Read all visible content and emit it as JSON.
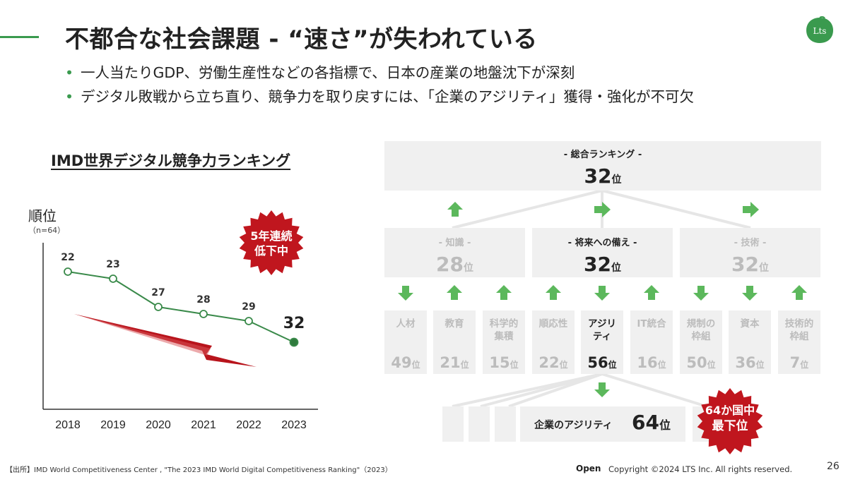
{
  "slide": {
    "title": "不都合な社会課題 - “速さ”が失われている",
    "logo_text": "Lts",
    "bullets": [
      "一人当たりGDP、労働生産性などの各指標で、日本の産業の地盤沈下が深刻",
      "デジタル敗戦から立ち直り、競争力を取り戻すには、「企業のアジリティ」獲得・強化が不可欠"
    ],
    "accent_color": "#3a9a4e",
    "alert_color": "#c0161e"
  },
  "left": {
    "title": "IMD世界デジタル競争力ランキング",
    "ylabel": "順位",
    "ysub": "（n=64）",
    "badge": [
      "5年連続",
      "低下中"
    ]
  },
  "chart_data": {
    "type": "line",
    "x": [
      "2018",
      "2019",
      "2020",
      "2021",
      "2022",
      "2023"
    ],
    "series": [
      {
        "values": [
          22,
          23,
          27,
          28,
          29,
          32
        ]
      }
    ],
    "point_labels": [
      "22",
      "23",
      "27",
      "28",
      "29",
      "32"
    ],
    "yaxis_inverted": true,
    "line_color": "#3a8a4a",
    "trend_arrow_color": "#b8141c"
  },
  "right": {
    "top": {
      "caption": "- 総合ランキング -",
      "rank": "32",
      "suffix": "位"
    },
    "mid": [
      {
        "caption": "- 知識 -",
        "rank": "28",
        "suffix": "位",
        "active": false
      },
      {
        "caption": "- 将来への備え -",
        "rank": "32",
        "suffix": "位",
        "active": true
      },
      {
        "caption": "- 技術 -",
        "rank": "32",
        "suffix": "位",
        "active": false
      }
    ],
    "mid_arrows": [
      "up",
      "right",
      "right"
    ],
    "leaves": [
      {
        "line1": "人材",
        "line2": "",
        "rank": "49",
        "suffix": "位",
        "arrow": "down",
        "active": false
      },
      {
        "line1": "教育",
        "line2": "",
        "rank": "21",
        "suffix": "位",
        "arrow": "up",
        "active": false
      },
      {
        "line1": "科学的",
        "line2": "集積",
        "rank": "15",
        "suffix": "位",
        "arrow": "up",
        "active": false
      },
      {
        "line1": "順応性",
        "line2": "",
        "rank": "22",
        "suffix": "位",
        "arrow": "up",
        "active": false
      },
      {
        "line1": "アジリ",
        "line2": "ティ",
        "rank": "56",
        "suffix": "位",
        "arrow": "down",
        "active": true
      },
      {
        "line1": "IT統合",
        "line2": "",
        "rank": "16",
        "suffix": "位",
        "arrow": "up",
        "active": false
      },
      {
        "line1": "規制の",
        "line2": "枠組",
        "rank": "50",
        "suffix": "位",
        "arrow": "down",
        "active": false
      },
      {
        "line1": "資本",
        "line2": "",
        "rank": "36",
        "suffix": "位",
        "arrow": "down",
        "active": false
      },
      {
        "line1": "技術的",
        "line2": "枠組",
        "rank": "7",
        "suffix": "位",
        "arrow": "up",
        "active": false
      }
    ],
    "bottom": {
      "label": "企業のアジリティ",
      "rank": "64",
      "suffix": "位"
    },
    "badge": [
      "64か国中",
      "最下位"
    ],
    "arrow_color": "#5cb85c"
  },
  "footer": {
    "source": "【出所】IMD World Competitiveness Center , \"The 2023 IMD World Digital Competitiveness Ranking\"（2023）",
    "open": "Open",
    "copyright": "Copyright ©2024 LTS Inc. All rights reserved.",
    "page": "26"
  }
}
